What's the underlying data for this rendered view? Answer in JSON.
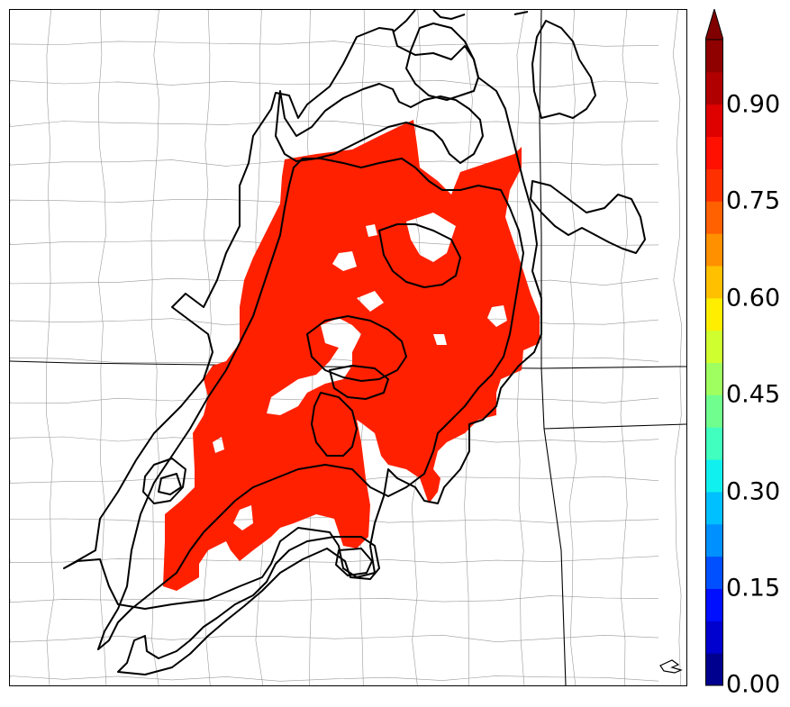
{
  "map": {
    "fill_color": "#ff2000",
    "contour_color": "#000000",
    "boundary_color": "#000000",
    "county_color": "#9a9a9a"
  },
  "colorbar": {
    "min": 0.0,
    "max": 1.0,
    "extend": "max",
    "levels": [
      0.0,
      0.05,
      0.1,
      0.15,
      0.2,
      0.25,
      0.3,
      0.35,
      0.4,
      0.45,
      0.5,
      0.55,
      0.6,
      0.65,
      0.7,
      0.75,
      0.8,
      0.85,
      0.9,
      0.95,
      1.0
    ],
    "colors": [
      "#00008f",
      "#0000cf",
      "#0010ff",
      "#0050ff",
      "#0090ff",
      "#00c0ff",
      "#10f0ef",
      "#40ffbf",
      "#70ff8f",
      "#a0ff60",
      "#d0ff30",
      "#ffee00",
      "#ffc000",
      "#ff9000",
      "#ff6000",
      "#ff3000",
      "#ff1000",
      "#df0000",
      "#b00000",
      "#8f0000"
    ],
    "extend_color": "#800000",
    "tick_values": [
      0.0,
      0.15,
      0.3,
      0.45,
      0.6,
      0.75,
      0.9
    ],
    "tick_labels": [
      "0.00",
      "0.15",
      "0.30",
      "0.45",
      "0.60",
      "0.75",
      "0.90"
    ]
  }
}
